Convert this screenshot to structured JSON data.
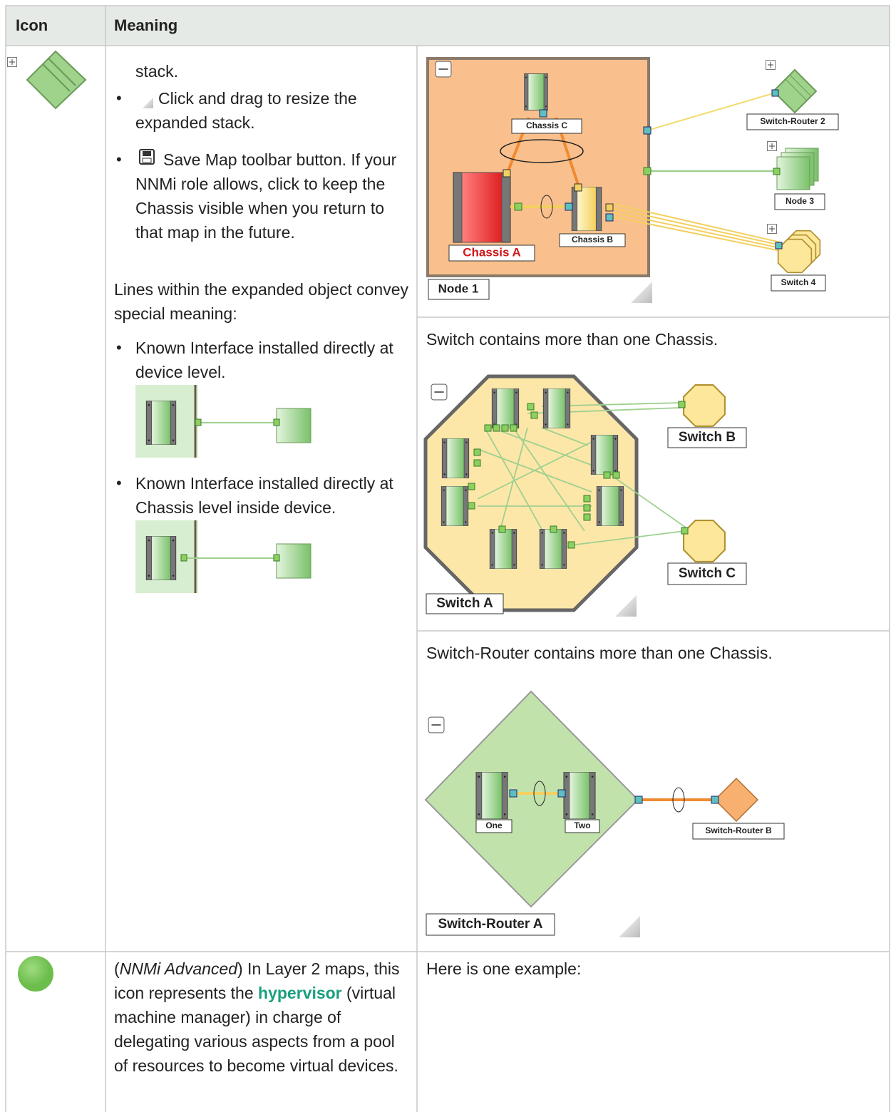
{
  "table": {
    "header": {
      "icon": "Icon",
      "meaning": "Meaning"
    },
    "rows": [
      {
        "meaning": {
          "intro": "stack.",
          "bullets": [
            "Click and drag to resize the expanded stack.",
            "Save Map toolbar button. If your NNMi role allows, click to keep the Chassis visible when you return to that map in the future."
          ],
          "lines_intro": "Lines within the expanded object convey special meaning:",
          "line_bullets": [
            "Known Interface installed directly at device level.",
            "Known Interface installed directly at Chassis level inside device."
          ]
        },
        "examples": [
          {
            "labels": [
              "Chassis C",
              "Chassis B",
              "Chassis A",
              "Node 1",
              "Switch-Router 2",
              "Node 3",
              "Switch 4"
            ]
          },
          {
            "caption": "Switch contains more than one Chassis.",
            "labels": [
              "Switch A",
              "Switch B",
              "Switch C"
            ]
          },
          {
            "caption": "Switch-Router contains more than one Chassis.",
            "labels": [
              "One",
              "Two",
              "Switch-Router A",
              "Switch-Router B"
            ]
          }
        ]
      },
      {
        "meaning": {
          "prefix": "(",
          "italic": "NNMi Advanced",
          "text1": ") In Layer 2 maps, this icon represents the",
          "link": "hypervisor",
          "text2": "(virtual machine manager) in charge of delegating various aspects from a pool of resources to become virtual devices."
        },
        "examples": [
          {
            "caption": "Here is one example:"
          }
        ]
      }
    ]
  }
}
